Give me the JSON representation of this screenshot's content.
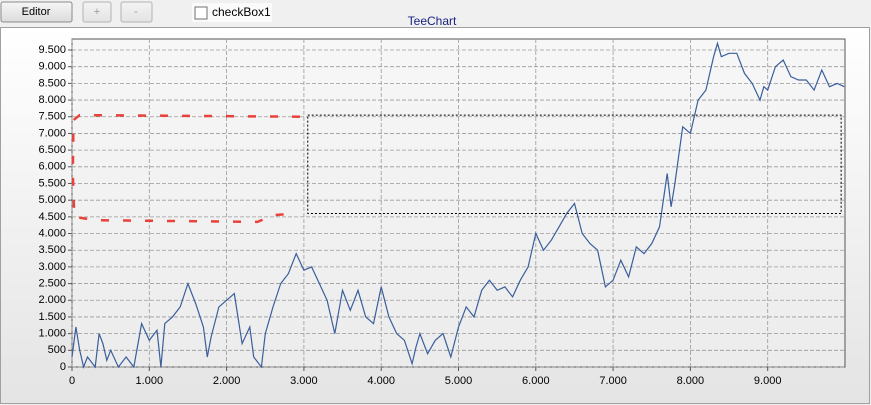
{
  "toolbar": {
    "buttons": [
      "Editor",
      "+",
      "-"
    ],
    "checkbox": "checkBox1"
  },
  "chart_data": {
    "type": "line",
    "title": "TeeChart",
    "xlim": [
      0,
      10000
    ],
    "ylim": [
      0,
      9830
    ],
    "grid": true,
    "xticks": [
      0,
      {
        "value": 1000,
        "label": "1.000"
      },
      {
        "value": 2000,
        "label": "2.000"
      },
      {
        "value": 3000,
        "label": "3.000"
      },
      {
        "value": 4000,
        "label": "4.000"
      },
      {
        "value": 5000,
        "label": "5.000"
      },
      {
        "value": 6000,
        "label": "6.000"
      },
      {
        "value": 7000,
        "label": "7.000"
      },
      {
        "value": 8000,
        "label": "8.000"
      },
      {
        "value": 9000,
        "label": "9.000"
      }
    ],
    "yticks": [
      0,
      500,
      {
        "value": 1000,
        "label": "1.000"
      },
      {
        "value": 1500,
        "label": "1.500"
      },
      {
        "value": 2000,
        "label": "2.000"
      },
      {
        "value": 2500,
        "label": "2.500"
      },
      {
        "value": 3000,
        "label": "3.000"
      },
      {
        "value": 3500,
        "label": "3.500"
      },
      {
        "value": 4000,
        "label": "4.000"
      },
      {
        "value": 4500,
        "label": "4.500"
      },
      {
        "value": 5000,
        "label": "5.000"
      },
      {
        "value": 5500,
        "label": "5.500"
      },
      {
        "value": 6000,
        "label": "6.000"
      },
      {
        "value": 6500,
        "label": "6.500"
      },
      {
        "value": 7000,
        "label": "7.000"
      },
      {
        "value": 7500,
        "label": "7.500"
      },
      {
        "value": 8000,
        "label": "8.000"
      },
      {
        "value": 8500,
        "label": "8.500"
      },
      {
        "value": 9000,
        "label": "9.000"
      },
      {
        "value": 9500,
        "label": "9.500"
      }
    ],
    "series": [
      {
        "color": "#3a5f9c",
        "style": "solid",
        "x": [
          0,
          50,
          100,
          150,
          200,
          300,
          350,
          400,
          450,
          500,
          600,
          700,
          800,
          900,
          1000,
          1100,
          1150,
          1200,
          1300,
          1400,
          1500,
          1600,
          1700,
          1750,
          1800,
          1900,
          2000,
          2100,
          2200,
          2300,
          2350,
          2450,
          2500,
          2600,
          2700,
          2800,
          2900,
          3000,
          3100,
          3200,
          3300,
          3400,
          3500,
          3600,
          3700,
          3800,
          3900,
          4000,
          4100,
          4200,
          4300,
          4400,
          4450,
          4500,
          4600,
          4700,
          4800,
          4900,
          5000,
          5100,
          5200,
          5300,
          5400,
          5500,
          5600,
          5700,
          5800,
          5900,
          6000,
          6100,
          6200,
          6300,
          6400,
          6500,
          6600,
          6700,
          6800,
          6900,
          7000,
          7100,
          7200,
          7300,
          7400,
          7500,
          7600,
          7700,
          7750,
          7800,
          7900,
          8000,
          8100,
          8200,
          8300,
          8350,
          8400,
          8500,
          8600,
          8700,
          8800,
          8900,
          8950,
          9000,
          9100,
          9200,
          9300,
          9400,
          9500,
          9600,
          9700,
          9800,
          9900,
          9990
        ],
        "values": [
          300,
          1200,
          500,
          0,
          300,
          0,
          1000,
          700,
          200,
          500,
          0,
          300,
          0,
          1300,
          800,
          1100,
          0,
          1300,
          1500,
          1800,
          2500,
          1900,
          1200,
          300,
          900,
          1800,
          2000,
          2200,
          700,
          1200,
          300,
          0,
          1000,
          1800,
          2500,
          2800,
          3400,
          2900,
          3000,
          2500,
          2000,
          1000,
          2300,
          1700,
          2300,
          1500,
          1300,
          2400,
          1500,
          1000,
          800,
          100,
          600,
          1000,
          400,
          800,
          1000,
          300,
          1200,
          1800,
          1500,
          2300,
          2600,
          2300,
          2400,
          2100,
          2600,
          3000,
          4000,
          3500,
          3800,
          4200,
          4600,
          4900,
          4000,
          3700,
          3500,
          2400,
          2600,
          3200,
          2700,
          3600,
          3400,
          3700,
          4200,
          5800,
          4800,
          5500,
          7200,
          7000,
          8000,
          8300,
          9300,
          9700,
          9300,
          9400,
          9400,
          8800,
          8500,
          8000,
          8400,
          8300,
          9000,
          9200,
          8700,
          8600,
          8600,
          8300,
          8900,
          8400,
          8500,
          8400
        ]
      },
      {
        "color": "#e8423a",
        "style": "dashed",
        "x": [
          2950,
          100,
          20,
          10,
          30,
          300,
          2400,
          2600,
          2900
        ],
        "values": [
          7500,
          7550,
          7400,
          5800,
          4500,
          4400,
          4350,
          4550,
          4600
        ]
      }
    ],
    "rectangle": {
      "x": [
        3050,
        9950
      ],
      "y": [
        4600,
        7550
      ]
    }
  }
}
